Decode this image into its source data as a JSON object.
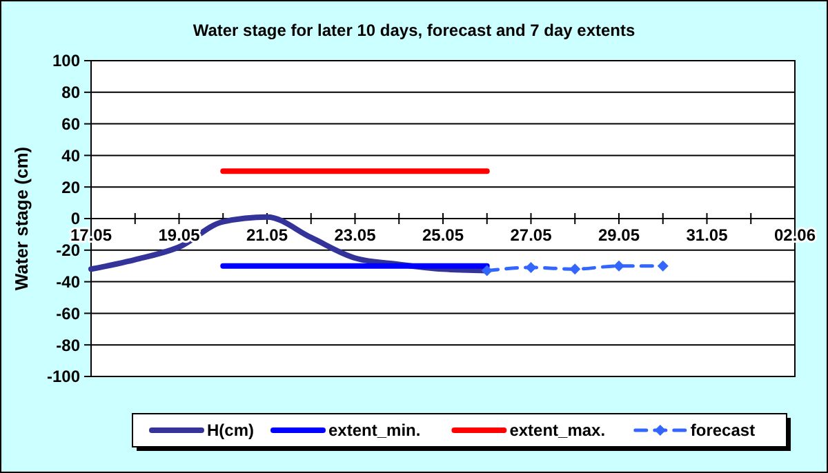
{
  "chart_data": {
    "type": "line",
    "title": "Water stage for later 10 days, forecast and 7 day extents",
    "ylabel": "Water stage (cm)",
    "xlim": [
      "--05-17",
      "--06-02"
    ],
    "xticks": [
      {
        "value": "--05-17",
        "label": "17.05"
      },
      {
        "value": "--05-18",
        "label": null
      },
      {
        "value": "--05-19",
        "label": "19.05"
      },
      {
        "value": "--05-20",
        "label": null
      },
      {
        "value": "--05-21",
        "label": "21.05"
      },
      {
        "value": "--05-22",
        "label": null
      },
      {
        "value": "--05-23",
        "label": "23.05"
      },
      {
        "value": "--05-24",
        "label": null
      },
      {
        "value": "--05-25",
        "label": "25.05"
      },
      {
        "value": "--05-26",
        "label": null
      },
      {
        "value": "--05-27",
        "label": "27.05"
      },
      {
        "value": "--05-28",
        "label": null
      },
      {
        "value": "--05-29",
        "label": "29.05"
      },
      {
        "value": "--05-30",
        "label": null
      },
      {
        "value": "--05-31",
        "label": "31.05"
      },
      {
        "value": "--06-01",
        "label": null
      },
      {
        "value": "--06-02",
        "label": "02.06"
      }
    ],
    "ylim": [
      -100,
      100
    ],
    "yticks": [
      -100,
      -80,
      -60,
      -40,
      -20,
      0,
      20,
      40,
      60,
      80,
      100
    ],
    "grid": "y",
    "legend": "bottom",
    "series": [
      {
        "name": "H(cm)",
        "color": "#333399",
        "x": [
          "--05-17",
          "--05-18",
          "--05-19",
          "--05-20",
          "--05-21",
          "--05-22",
          "--05-23",
          "--05-24",
          "--05-25",
          "--05-26"
        ],
        "values": [
          -32,
          -26,
          -18,
          -2,
          1,
          -12,
          -25,
          -29,
          -32,
          -33
        ]
      },
      {
        "name": "extent_min.",
        "color": "#0000ff",
        "x": [
          "--05-20",
          "--05-26"
        ],
        "values": [
          -30,
          -30
        ]
      },
      {
        "name": "extent_max.",
        "color": "#ff0000",
        "x": [
          "--05-20",
          "--05-26"
        ],
        "values": [
          30,
          30
        ]
      },
      {
        "name": "forecast",
        "color": "#3366ff",
        "marker": "diamond",
        "line_style": "dashed",
        "x": [
          "--05-26",
          "--05-27",
          "--05-28",
          "--05-29",
          "--05-30"
        ],
        "values": [
          -33,
          -31,
          -32,
          -30,
          -30
        ]
      }
    ]
  }
}
